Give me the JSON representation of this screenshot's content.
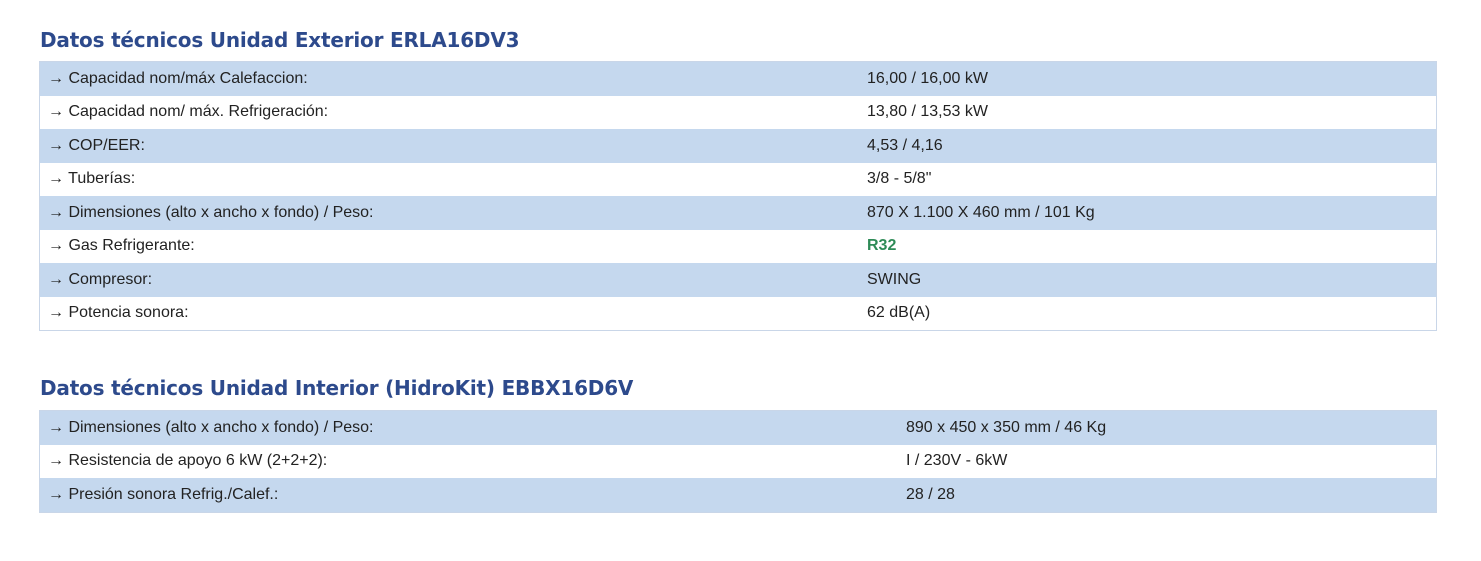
{
  "exterior": {
    "title": "Datos técnicos Unidad Exterior ERLA16DV3",
    "rows": [
      {
        "label": "→ Capacidad nom/máx Calefaccion:",
        "value": "16,00 / 16,00 kW"
      },
      {
        "label": "→ Capacidad nom/ máx. Refrigeración:",
        "value": "13,80 / 13,53 kW"
      },
      {
        "label": "→ COP/EER:",
        "value": "4,53 / 4,16"
      },
      {
        "label": "→ Tuberías:",
        "value": "3/8 - 5/8\""
      },
      {
        "label": "→ Dimensiones (alto x ancho x fondo) / Peso:",
        "value": "870 X 1.100 X 460 mm / 101 Kg"
      },
      {
        "label": "→ Gas Refrigerante:",
        "value": "R32"
      },
      {
        "label": "→ Compresor:",
        "value": "SWING"
      },
      {
        "label": "→ Potencia sonora:",
        "value": "62 dB(A)"
      }
    ]
  },
  "interior": {
    "title": "Datos técnicos Unidad Interior (HidroKit) EBBX16D6V",
    "rows": [
      {
        "label": "→ Dimensiones (alto x ancho x fondo) / Peso:",
        "value": "890 x 450 x 350 mm / 46 Kg"
      },
      {
        "label": "→ Resistencia de apoyo 6 kW (2+2+2):",
        "value": "I / 230V - 6kW"
      },
      {
        "label": "→ Presión sonora Refrig./Calef.:",
        "value": "28 / 28"
      }
    ]
  },
  "colors": {
    "title": "#2d4a8c",
    "row_shaded": "#c5d8ee",
    "row_plain": "#ffffff",
    "highlight_value": "#2e8b57"
  }
}
